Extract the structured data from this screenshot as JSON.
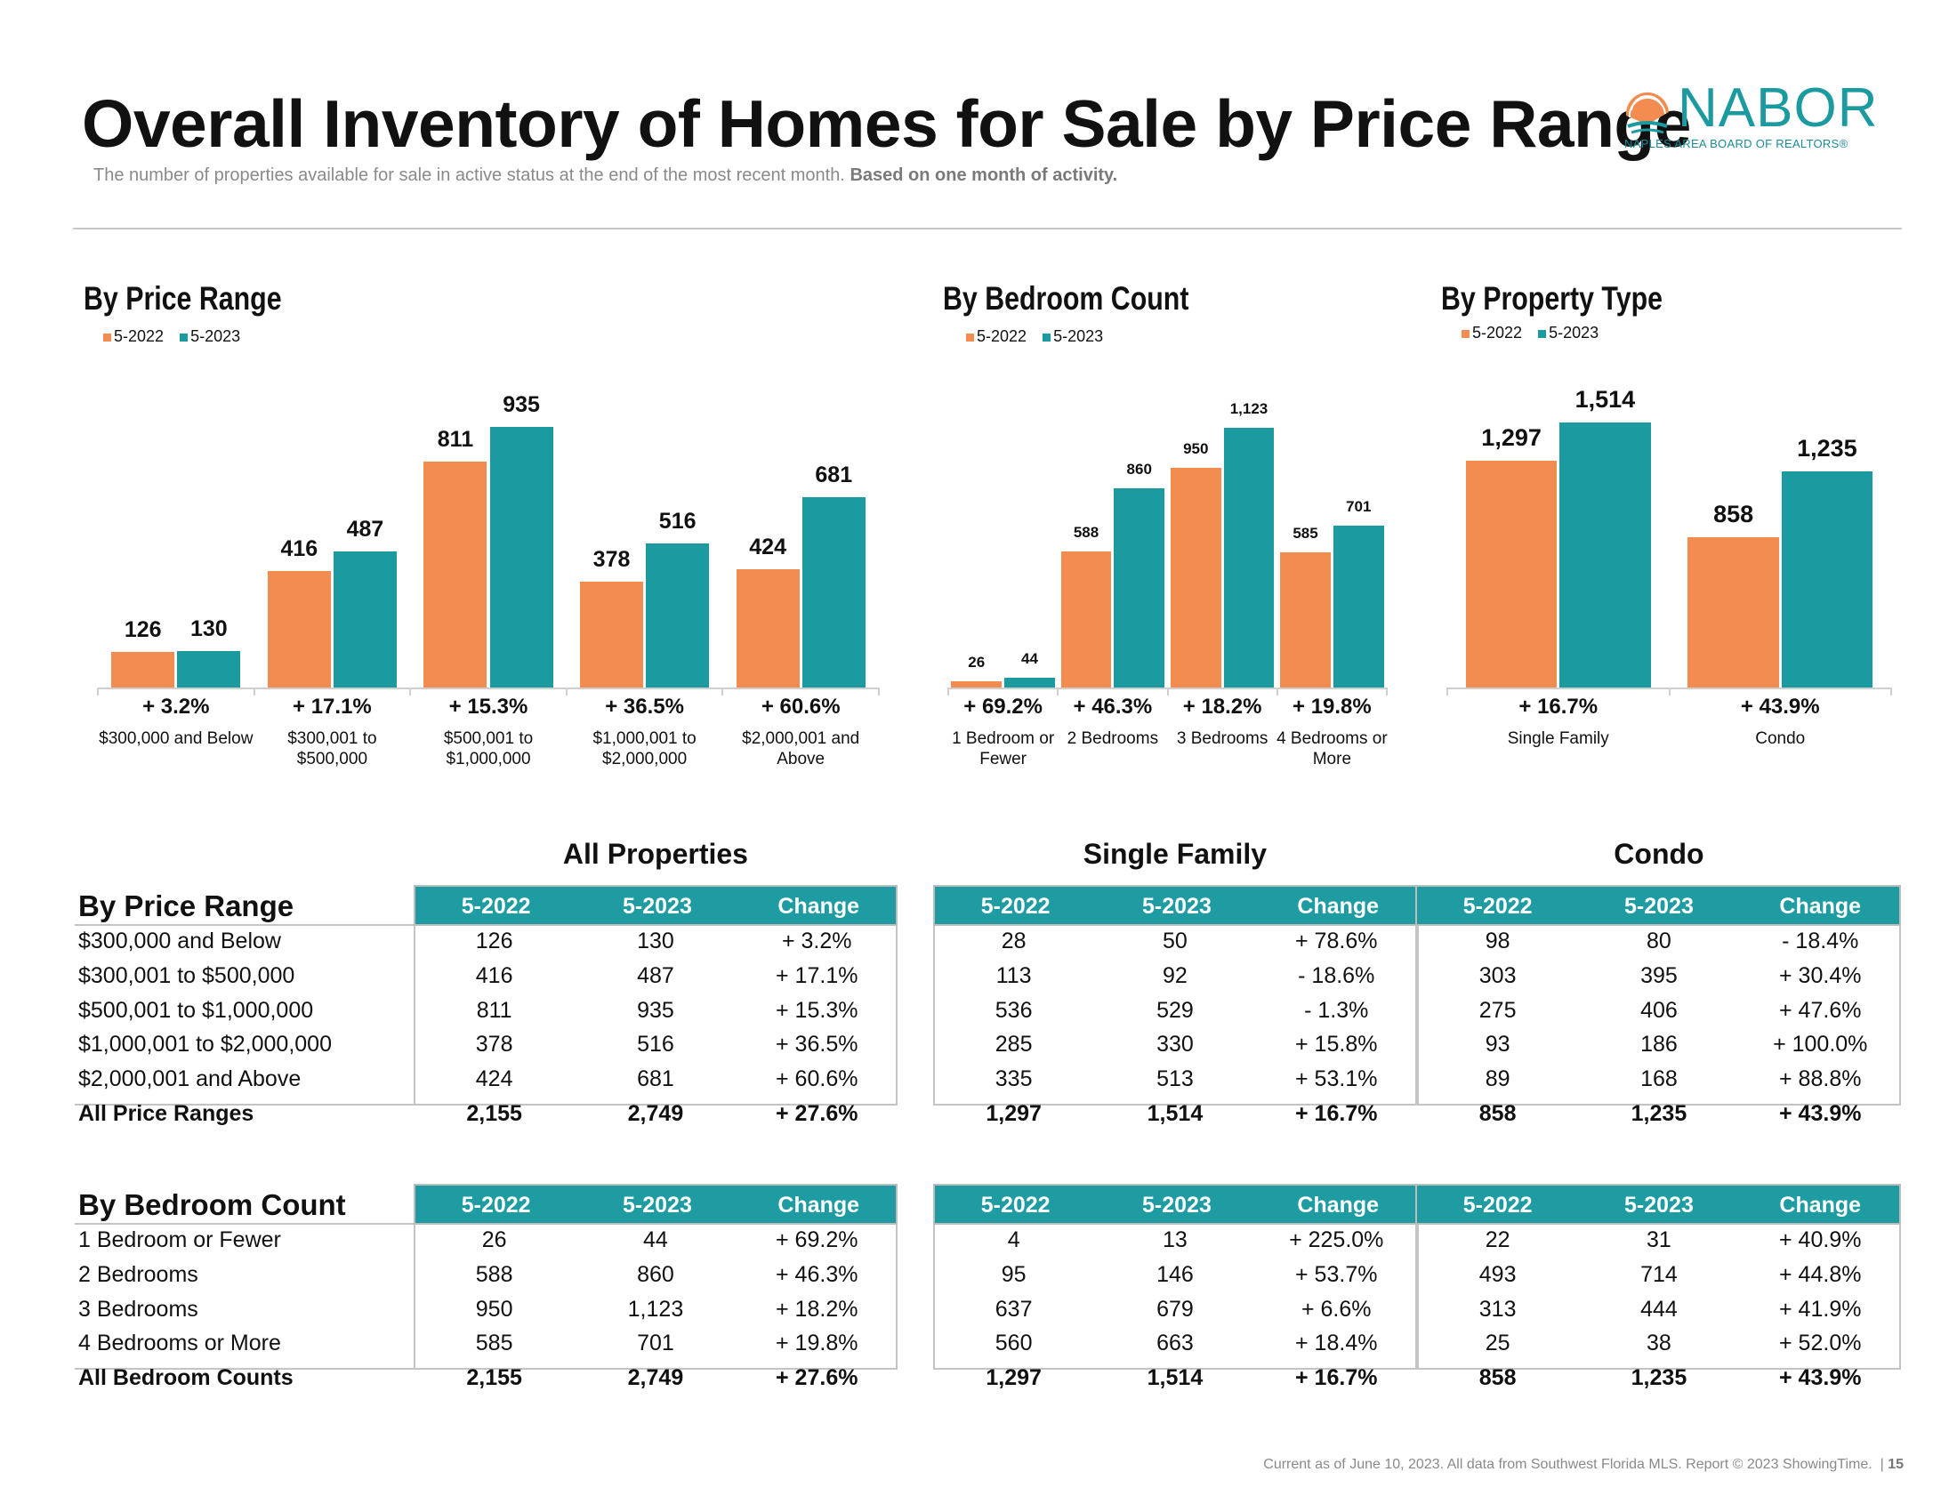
{
  "header": {
    "title": "Overall Inventory of Homes for Sale by Price Range",
    "subtitle": "The number of properties available for sale in active status at the end of the most recent month.",
    "subtitle_bold": "Based on one month of activity.",
    "logo": {
      "word": "NABOR",
      "tagline": "NAPLES AREA BOARD OF REALTORS®"
    }
  },
  "colors": {
    "series_2022": "#F28C51",
    "series_2023": "#1B9AA0",
    "table_header": "#1F9BA2"
  },
  "chart_data": [
    {
      "type": "bar",
      "title": "By Price Range",
      "legend": [
        "5-2022",
        "5-2023"
      ],
      "categories": [
        "$300,000 and Below",
        "$300,001 to $500,000",
        "$500,001 to $1,000,000",
        "$1,000,001 to $2,000,000",
        "$2,000,001 and Above"
      ],
      "series": [
        {
          "name": "5-2022",
          "values": [
            126,
            416,
            811,
            378,
            424
          ],
          "labels": [
            "126",
            "416",
            "811",
            "378",
            "424"
          ]
        },
        {
          "name": "5-2023",
          "values": [
            130,
            487,
            935,
            516,
            681
          ],
          "labels": [
            "130",
            "487",
            "935",
            "516",
            "681"
          ]
        }
      ],
      "changes": [
        "+ 3.2%",
        "+ 17.1%",
        "+ 15.3%",
        "+ 36.5%",
        "+ 60.6%"
      ]
    },
    {
      "type": "bar",
      "title": "By Bedroom Count",
      "legend": [
        "5-2022",
        "5-2023"
      ],
      "categories": [
        "1 Bedroom or Fewer",
        "2 Bedrooms",
        "3 Bedrooms",
        "4 Bedrooms or More"
      ],
      "series": [
        {
          "name": "5-2022",
          "values": [
            26,
            588,
            950,
            585
          ],
          "labels": [
            "26",
            "588",
            "950",
            "585"
          ]
        },
        {
          "name": "5-2023",
          "values": [
            44,
            860,
            1123,
            701
          ],
          "labels": [
            "44",
            "860",
            "1,123",
            "701"
          ]
        }
      ],
      "changes": [
        "+ 69.2%",
        "+ 46.3%",
        "+ 18.2%",
        "+ 19.8%"
      ]
    },
    {
      "type": "bar",
      "title": "By Property Type",
      "legend": [
        "5-2022",
        "5-2023"
      ],
      "categories": [
        "Single Family",
        "Condo"
      ],
      "series": [
        {
          "name": "5-2022",
          "values": [
            1297,
            858
          ],
          "labels": [
            "1,297",
            "858"
          ]
        },
        {
          "name": "5-2023",
          "values": [
            1514,
            1235
          ],
          "labels": [
            "1,514",
            "1,235"
          ]
        }
      ],
      "changes": [
        "+ 16.7%",
        "+ 43.9%"
      ]
    }
  ],
  "tables": {
    "groups": [
      "All Properties",
      "Single Family",
      "Condo"
    ],
    "columns": [
      "5-2022",
      "5-2023",
      "Change"
    ],
    "price": {
      "title": "By Price Range",
      "rows": [
        {
          "label": "$300,000 and Below",
          "vals": [
            "126",
            "130",
            "+ 3.2%",
            "28",
            "50",
            "+ 78.6%",
            "98",
            "80",
            "- 18.4%"
          ]
        },
        {
          "label": "$300,001 to $500,000",
          "vals": [
            "416",
            "487",
            "+ 17.1%",
            "113",
            "92",
            "- 18.6%",
            "303",
            "395",
            "+ 30.4%"
          ]
        },
        {
          "label": "$500,001 to $1,000,000",
          "vals": [
            "811",
            "935",
            "+ 15.3%",
            "536",
            "529",
            "- 1.3%",
            "275",
            "406",
            "+ 47.6%"
          ]
        },
        {
          "label": "$1,000,001 to $2,000,000",
          "vals": [
            "378",
            "516",
            "+ 36.5%",
            "285",
            "330",
            "+ 15.8%",
            "93",
            "186",
            "+ 100.0%"
          ]
        },
        {
          "label": "$2,000,001 and Above",
          "vals": [
            "424",
            "681",
            "+ 60.6%",
            "335",
            "513",
            "+ 53.1%",
            "89",
            "168",
            "+ 88.8%"
          ]
        }
      ],
      "total": {
        "label": "All Price Ranges",
        "vals": [
          "2,155",
          "2,749",
          "+ 27.6%",
          "1,297",
          "1,514",
          "+ 16.7%",
          "858",
          "1,235",
          "+ 43.9%"
        ]
      }
    },
    "bedroom": {
      "title": "By Bedroom Count",
      "rows": [
        {
          "label": "1 Bedroom or Fewer",
          "vals": [
            "26",
            "44",
            "+ 69.2%",
            "4",
            "13",
            "+ 225.0%",
            "22",
            "31",
            "+ 40.9%"
          ]
        },
        {
          "label": "2 Bedrooms",
          "vals": [
            "588",
            "860",
            "+ 46.3%",
            "95",
            "146",
            "+ 53.7%",
            "493",
            "714",
            "+ 44.8%"
          ]
        },
        {
          "label": "3 Bedrooms",
          "vals": [
            "950",
            "1,123",
            "+ 18.2%",
            "637",
            "679",
            "+ 6.6%",
            "313",
            "444",
            "+ 41.9%"
          ]
        },
        {
          "label": "4 Bedrooms or More",
          "vals": [
            "585",
            "701",
            "+ 19.8%",
            "560",
            "663",
            "+ 18.4%",
            "25",
            "38",
            "+ 52.0%"
          ]
        }
      ],
      "total": {
        "label": "All Bedroom Counts",
        "vals": [
          "2,155",
          "2,749",
          "+ 27.6%",
          "1,297",
          "1,514",
          "+ 16.7%",
          "858",
          "1,235",
          "+ 43.9%"
        ]
      }
    }
  },
  "footer": {
    "text": "Current as of June 10, 2023. All data from Southwest Florida MLS. Report © 2023 ShowingTime.",
    "page": "15"
  }
}
